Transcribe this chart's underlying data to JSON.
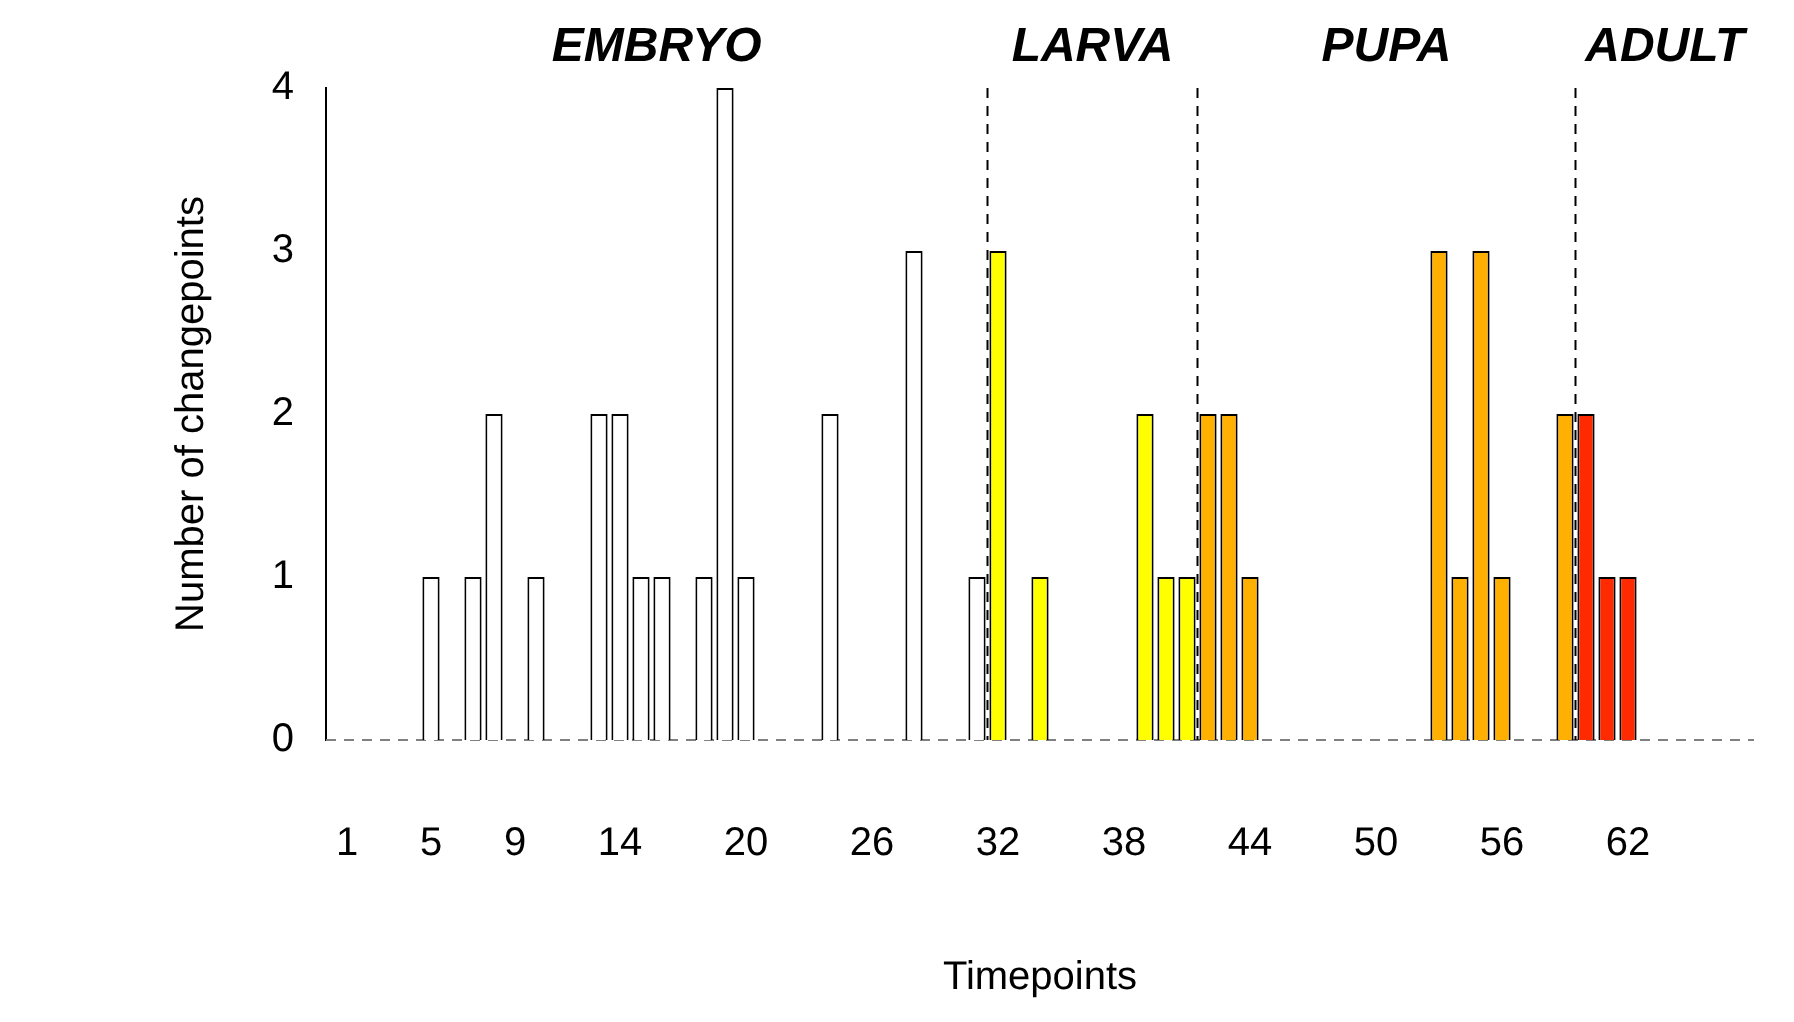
{
  "chart_data": {
    "type": "bar",
    "xlabel": "Timepoints",
    "ylabel": "Number of changepoints",
    "x": [
      1,
      2,
      3,
      4,
      5,
      6,
      7,
      8,
      9,
      10,
      11,
      12,
      13,
      14,
      15,
      16,
      17,
      18,
      19,
      20,
      21,
      22,
      23,
      24,
      25,
      26,
      27,
      28,
      29,
      30,
      31,
      32,
      33,
      34,
      35,
      36,
      37,
      38,
      39,
      40,
      41,
      42,
      43,
      44,
      45,
      46,
      47,
      48,
      49,
      50,
      51,
      52,
      53,
      54,
      55,
      56,
      57,
      58,
      59,
      60,
      61,
      62,
      63,
      64,
      65,
      66,
      67
    ],
    "values": [
      0,
      0,
      0,
      0,
      1,
      0,
      1,
      2,
      0,
      1,
      0,
      0,
      2,
      2,
      1,
      1,
      0,
      1,
      4,
      1,
      0,
      0,
      0,
      2,
      0,
      0,
      0,
      3,
      0,
      0,
      1,
      3,
      0,
      1,
      0,
      0,
      0,
      0,
      2,
      1,
      1,
      2,
      2,
      1,
      0,
      0,
      0,
      0,
      0,
      0,
      0,
      0,
      3,
      1,
      3,
      1,
      0,
      0,
      2,
      2,
      1,
      1,
      0,
      0,
      0,
      0,
      0
    ],
    "colors": [
      "#ffffff",
      "#ffffff",
      "#ffffff",
      "#ffffff",
      "#ffffff",
      "#ffffff",
      "#ffffff",
      "#ffffff",
      "#ffffff",
      "#ffffff",
      "#ffffff",
      "#ffffff",
      "#ffffff",
      "#ffffff",
      "#ffffff",
      "#ffffff",
      "#ffffff",
      "#ffffff",
      "#ffffff",
      "#ffffff",
      "#ffffff",
      "#ffffff",
      "#ffffff",
      "#ffffff",
      "#ffffff",
      "#ffffff",
      "#ffffff",
      "#ffffff",
      "#ffffff",
      "#ffffff",
      "#ffffff",
      "#ffff00",
      "#ffff00",
      "#ffff00",
      "#ffff00",
      "#ffff00",
      "#ffff00",
      "#ffff00",
      "#ffff00",
      "#ffff00",
      "#ffff00",
      "#ffb000",
      "#ffb000",
      "#ffb000",
      "#ffb000",
      "#ffb000",
      "#ffb000",
      "#ffb000",
      "#ffb000",
      "#ffb000",
      "#ffb000",
      "#ffb000",
      "#ffb000",
      "#ffb000",
      "#ffb000",
      "#ffb000",
      "#ffb000",
      "#ffb000",
      "#ffb000",
      "#ff2a00",
      "#ff2a00",
      "#ff2a00",
      "#ff2a00",
      "#ff2a00",
      "#ff2a00",
      "#ff2a00",
      "#ff2a00"
    ],
    "xlim": [
      0,
      68
    ],
    "xticks": [
      1,
      5,
      9,
      14,
      20,
      26,
      32,
      38,
      44,
      50,
      56,
      62
    ],
    "ylim": [
      0,
      4
    ],
    "yticks": [
      0,
      1,
      2,
      3,
      4
    ],
    "grid": false,
    "legend": false,
    "annotations": [
      "EMBRYO",
      "LARVA",
      "PUPA",
      "ADULT"
    ],
    "ref_lines": [
      {
        "axis": "y",
        "value": 0,
        "color": "#808080",
        "line_style": "dashed"
      },
      {
        "axis": "x",
        "value": 31.5,
        "color": "#000000",
        "line_style": "dashed"
      },
      {
        "axis": "x",
        "value": 41.5,
        "color": "#000000",
        "line_style": "dashed"
      },
      {
        "axis": "x",
        "value": 59.5,
        "color": "#000000",
        "line_style": "dashed"
      }
    ]
  }
}
